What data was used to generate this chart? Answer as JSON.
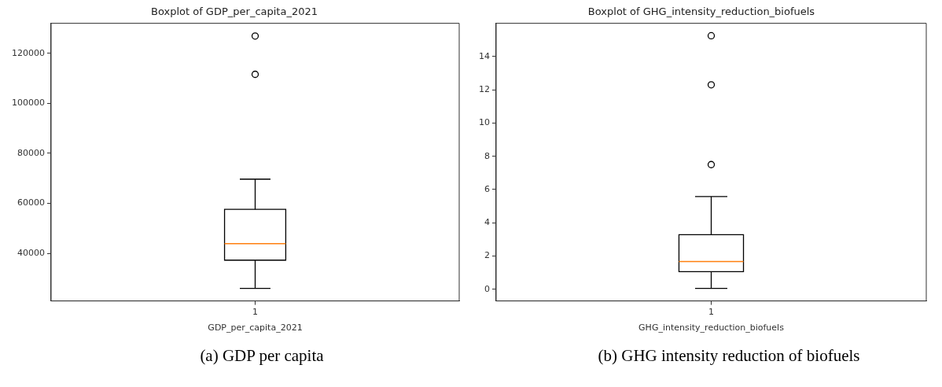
{
  "chart_data": [
    {
      "type": "box",
      "title": "Boxplot of GDP_per_capita_2021",
      "xlabel": "GDP_per_capita_2021",
      "categories": [
        "1"
      ],
      "ylim": [
        21000,
        132000
      ],
      "yticks": [
        40000,
        60000,
        80000,
        100000,
        120000
      ],
      "grid": false,
      "legend": false,
      "annotations": [
        "(a) GDP per capita"
      ],
      "series": [
        {
          "color": "#000000",
          "boxes": [
            {
              "low": 26000,
              "q1": 37300,
              "median": 43900,
              "q3": 57600,
              "high": 69700,
              "outliers": [
                111600,
                126900
              ]
            }
          ]
        }
      ]
    },
    {
      "type": "box",
      "title": "Boxplot of GHG_intensity_reduction_biofuels",
      "xlabel": "GHG_intensity_reduction_biofuels",
      "categories": [
        "1"
      ],
      "ylim": [
        -0.7,
        16
      ],
      "yticks": [
        0,
        2,
        4,
        6,
        8,
        10,
        12,
        14
      ],
      "grid": false,
      "legend": false,
      "annotations": [
        "(b) GHG intensity reduction of biofuels"
      ],
      "series": [
        {
          "color": "#000000",
          "boxes": [
            {
              "low": 0.06,
              "q1": 1.06,
              "median": 1.67,
              "q3": 3.28,
              "high": 5.58,
              "outliers": [
                7.5,
                12.3,
                15.25
              ]
            }
          ]
        }
      ]
    }
  ]
}
